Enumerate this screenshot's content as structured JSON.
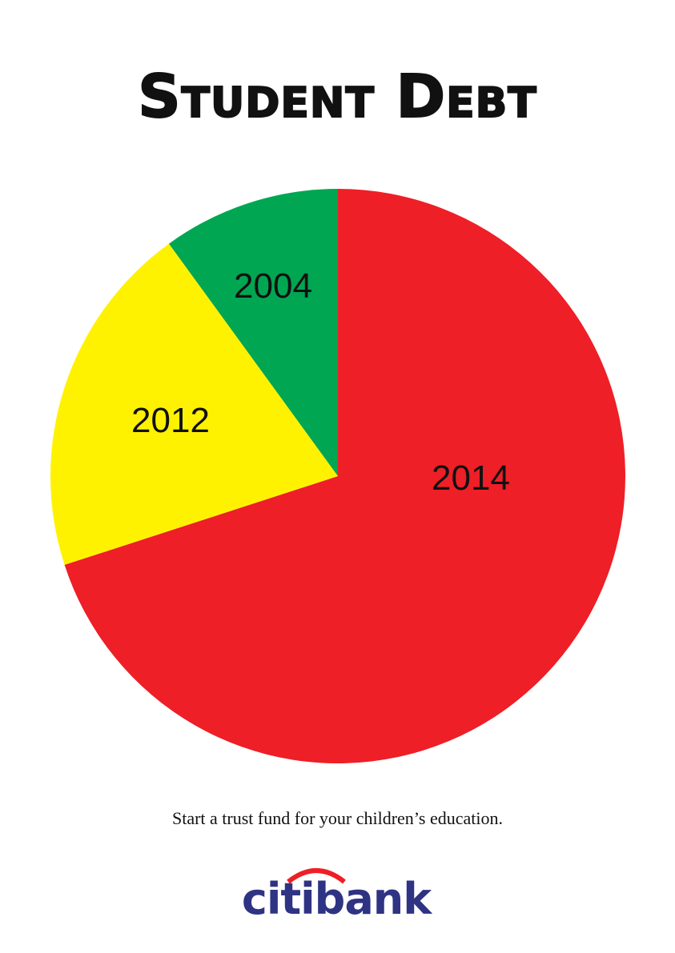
{
  "chart_data": {
    "type": "pie",
    "title": "Student Debt",
    "slices": [
      {
        "label": "2014",
        "value": 70,
        "color": "#ee1f26"
      },
      {
        "label": "2012",
        "value": 20,
        "color": "#fff200"
      },
      {
        "label": "2004",
        "value": 10,
        "color": "#00a651"
      }
    ],
    "start_angle": "top",
    "direction": "clockwise",
    "legend": "none"
  },
  "tagline": "Start a trust fund for your children’s education.",
  "brand": {
    "name": "citibank",
    "text_color": "#2e3383",
    "arc_color": "#ee1f26"
  }
}
